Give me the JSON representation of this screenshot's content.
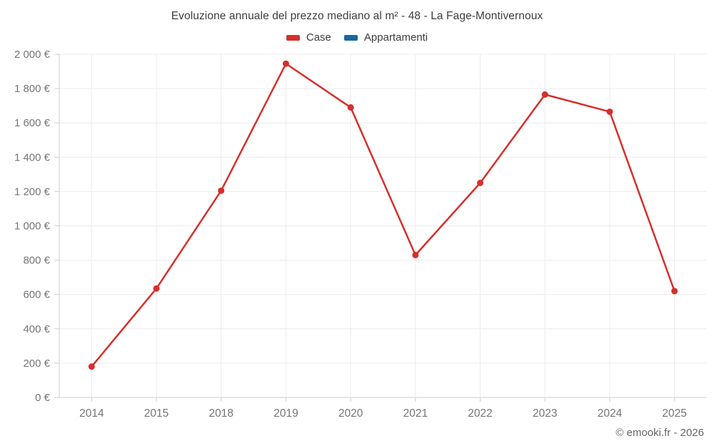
{
  "page": {
    "footer": "© emooki.fr - 2026"
  },
  "chart_data": {
    "type": "line",
    "title": "Evoluzione annuale del prezzo mediano al m² - 48 - La Fage-Montivernoux",
    "categories": [
      "2014",
      "2015",
      "2018",
      "2019",
      "2020",
      "2021",
      "2022",
      "2023",
      "2024",
      "2025"
    ],
    "series": [
      {
        "name": "Case",
        "color": "#d5302c",
        "values": [
          180,
          635,
          1205,
          1945,
          1690,
          830,
          1250,
          1765,
          1665,
          620
        ]
      },
      {
        "name": "Appartamenti",
        "color": "#17699f",
        "values": []
      }
    ],
    "ylabel": "",
    "xlabel": "",
    "ylim": [
      0,
      2000
    ],
    "y_tick_step": 200,
    "y_tick_labels": [
      "0 €",
      "200 €",
      "400 €",
      "600 €",
      "800 €",
      "1 000 €",
      "1 200 €",
      "1 400 €",
      "1 600 €",
      "1 800 €",
      "2 000 €"
    ],
    "grid": true,
    "legend_position": "top",
    "currency": "€"
  },
  "colors": {
    "gridline": "#ececec",
    "axis": "#cccccc",
    "tick": "#cfcfcf",
    "tick_label": "#757575",
    "title_text": "#3d3d3d"
  }
}
